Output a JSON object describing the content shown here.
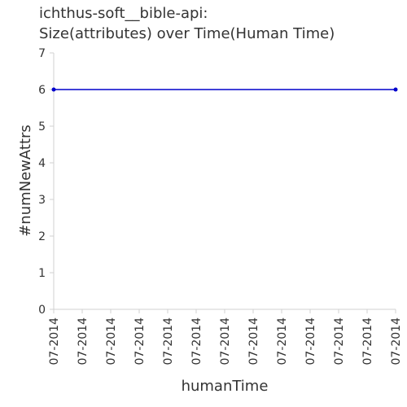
{
  "chart_data": {
    "type": "line",
    "title_lines": [
      "ichthus-soft__bible-api:",
      "Size(attributes) over Time(Human Time)"
    ],
    "xlabel": "humanTime",
    "ylabel": "#numNewAttrs",
    "x_tick_labels": [
      "07-2014",
      "07-2014",
      "07-2014",
      "07-2014",
      "07-2014",
      "07-2014",
      "07-2014",
      "07-2014",
      "07-2014",
      "07-2014",
      "07-2014",
      "07-2014",
      "07-2014"
    ],
    "y_ticks": [
      0,
      1,
      2,
      3,
      4,
      5,
      6,
      7
    ],
    "ylim": [
      0,
      7
    ],
    "grid": false,
    "series": [
      {
        "color": "#0000cc",
        "x_index": [
          0,
          12
        ],
        "values": [
          6,
          6
        ]
      }
    ]
  }
}
